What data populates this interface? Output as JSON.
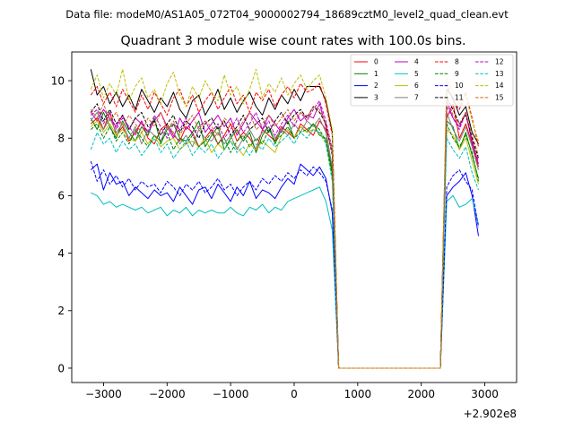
{
  "header_text": "Data file: modeM0/AS1A05_072T04_9000002794_18689cztM0_level2_quad_clean.evt",
  "chart_data": {
    "type": "line",
    "title": "Quadrant 3 module wise count rates with 100.0s bins.",
    "xlabel": "",
    "ylabel": "",
    "x_offset_label": "+2.902e8",
    "xlim": [
      -3500,
      3500
    ],
    "ylim": [
      -0.5,
      11.0
    ],
    "xticks": [
      -3000,
      -2000,
      -1000,
      0,
      1000,
      2000,
      3000
    ],
    "xtick_labels": [
      "−3000",
      "−2000",
      "−1000",
      "0",
      "1000",
      "2000",
      "3000"
    ],
    "yticks": [
      0,
      2,
      4,
      6,
      8,
      10
    ],
    "ytick_labels": [
      "0",
      "2",
      "4",
      "6",
      "8",
      "10"
    ],
    "grid": false,
    "legend_position": "top-right",
    "legend_columns": 4,
    "x_start": -3200,
    "x_step": 100,
    "gap_start_index": 38,
    "gap_end_index": 55,
    "series": [
      {
        "name": "0",
        "color": "#ff0000",
        "dash": "solid",
        "pre": [
          8.5,
          8.7,
          8.3,
          8.9,
          8.1,
          8.4,
          7.9,
          8.2,
          8.6,
          8.0,
          7.8,
          8.3,
          8.5,
          8.1,
          7.9,
          8.4,
          8.2,
          7.7,
          8.0,
          8.3,
          7.8,
          8.1,
          8.5,
          7.9,
          8.2,
          8.0,
          7.6,
          8.3,
          8.1,
          7.9,
          8.4,
          8.2,
          8.0,
          8.5,
          8.3,
          8.1,
          8.6,
          8.3
        ],
        "drop": 6.9,
        "post_rise": 8.7,
        "post": [
          9.2,
          8.0,
          8.5,
          7.8,
          7.0
        ]
      },
      {
        "name": "1",
        "color": "#008000",
        "dash": "solid",
        "pre": [
          8.7,
          8.3,
          8.9,
          8.4,
          8.0,
          8.6,
          8.2,
          7.9,
          8.4,
          8.1,
          8.7,
          7.8,
          8.3,
          8.5,
          8.0,
          7.9,
          8.2,
          8.6,
          7.7,
          8.1,
          8.4,
          7.6,
          8.0,
          8.3,
          7.9,
          8.2,
          7.5,
          8.1,
          8.4,
          7.8,
          8.3,
          8.6,
          8.0,
          8.4,
          8.2,
          8.5,
          8.1,
          8.0
        ],
        "drop": 6.8,
        "post_rise": 8.6,
        "post": [
          8.4,
          7.6,
          8.2,
          7.4,
          6.6
        ]
      },
      {
        "name": "2",
        "color": "#0000ff",
        "dash": "solid",
        "pre": [
          6.9,
          7.1,
          6.2,
          6.8,
          6.4,
          6.5,
          6.0,
          6.3,
          6.1,
          5.9,
          6.2,
          6.0,
          6.1,
          5.8,
          6.3,
          6.0,
          5.7,
          6.2,
          6.3,
          5.9,
          6.4,
          6.1,
          5.8,
          6.3,
          6.0,
          6.5,
          5.9,
          6.2,
          6.1,
          5.9,
          6.3,
          6.6,
          6.4,
          7.1,
          6.9,
          6.7,
          7.0,
          6.6
        ],
        "drop": 5.4,
        "post_rise": 6.0,
        "post": [
          6.3,
          6.5,
          6.8,
          6.0,
          4.6
        ]
      },
      {
        "name": "3",
        "color": "#000000",
        "dash": "solid",
        "pre": [
          10.4,
          9.5,
          9.8,
          9.2,
          9.6,
          9.1,
          9.5,
          9.0,
          9.7,
          9.3,
          8.9,
          9.4,
          9.1,
          9.6,
          9.0,
          8.7,
          9.3,
          9.5,
          8.8,
          9.2,
          9.7,
          9.0,
          9.4,
          8.9,
          9.3,
          9.6,
          9.1,
          8.8,
          9.4,
          9.0,
          9.5,
          9.2,
          9.7,
          9.3,
          9.8,
          9.8,
          9.8,
          9.3
        ],
        "drop": 8.2,
        "post_rise": 9.7,
        "post": [
          9.4,
          8.8,
          9.1,
          8.2,
          7.8
        ]
      },
      {
        "name": "4",
        "color": "#bf00bf",
        "dash": "solid",
        "pre": [
          8.9,
          8.6,
          9.0,
          8.7,
          8.4,
          8.8,
          8.3,
          8.7,
          8.5,
          8.2,
          8.6,
          8.9,
          8.4,
          8.0,
          8.7,
          8.3,
          8.6,
          8.9,
          8.2,
          8.5,
          8.8,
          8.4,
          8.7,
          8.1,
          8.5,
          8.9,
          8.6,
          8.3,
          8.8,
          8.5,
          8.2,
          8.7,
          9.0,
          8.6,
          8.8,
          8.7,
          9.2,
          8.4
        ],
        "drop": 7.5,
        "post_rise": 9.3,
        "post": [
          8.7,
          8.4,
          8.9,
          7.9,
          7.1
        ]
      },
      {
        "name": "5",
        "color": "#00bfbf",
        "dash": "solid",
        "pre": [
          6.1,
          6.0,
          5.7,
          5.8,
          5.6,
          5.7,
          5.6,
          5.5,
          5.6,
          5.4,
          5.5,
          5.6,
          5.3,
          5.5,
          5.4,
          5.6,
          5.3,
          5.5,
          5.4,
          5.5,
          5.4,
          5.4,
          5.6,
          5.4,
          5.3,
          5.6,
          5.5,
          5.7,
          5.4,
          5.6,
          5.5,
          5.8,
          5.9,
          6.0,
          6.1,
          6.2,
          6.3,
          5.8
        ],
        "drop": 4.8,
        "post_rise": 5.8,
        "post": [
          6.0,
          5.6,
          5.7,
          5.9,
          5.0
        ]
      },
      {
        "name": "6",
        "color": "#bfbf00",
        "dash": "solid",
        "pre": [
          8.4,
          8.6,
          8.2,
          8.5,
          8.1,
          8.3,
          8.0,
          7.9,
          8.2,
          7.8,
          8.1,
          7.7,
          7.9,
          8.0,
          7.6,
          7.8,
          7.9,
          7.7,
          8.0,
          7.5,
          7.8,
          7.6,
          7.9,
          7.7,
          7.4,
          7.8,
          7.6,
          7.9,
          7.7,
          7.5,
          8.1,
          8.3,
          8.0,
          8.4,
          8.2,
          8.3,
          8.2,
          7.9
        ],
        "drop": 6.6,
        "post_rise": 8.3,
        "post": [
          8.1,
          7.6,
          8.0,
          7.2,
          6.4
        ]
      },
      {
        "name": "7",
        "color": "#808080",
        "dash": "solid",
        "pre": [
          8.6,
          8.9,
          8.3,
          8.7,
          8.2,
          8.5,
          8.0,
          8.4,
          7.8,
          8.3,
          8.1,
          7.9,
          8.4,
          8.2,
          7.8,
          8.1,
          7.7,
          8.3,
          8.0,
          7.9,
          8.2,
          7.8,
          8.1,
          7.6,
          8.0,
          8.3,
          7.9,
          8.2,
          8.4,
          8.0,
          8.3,
          8.1,
          8.5,
          8.2,
          8.6,
          8.4,
          8.7,
          8.2
        ],
        "drop": 7.0,
        "post_rise": 8.9,
        "post": [
          8.3,
          7.9,
          8.4,
          7.7,
          6.9
        ]
      },
      {
        "name": "8",
        "color": "#ff0000",
        "dash": "dashed",
        "pre": [
          9.5,
          9.8,
          9.2,
          9.6,
          9.1,
          9.7,
          9.3,
          8.9,
          9.5,
          9.0,
          9.6,
          9.2,
          8.8,
          9.4,
          9.7,
          9.1,
          9.5,
          8.9,
          9.3,
          9.6,
          9.0,
          9.4,
          9.8,
          9.2,
          9.5,
          8.9,
          9.6,
          9.3,
          9.7,
          9.1,
          9.5,
          9.8,
          9.4,
          9.9,
          9.6,
          9.7,
          9.9,
          9.2
        ],
        "drop": 8.1,
        "post_rise": 9.9,
        "post": [
          9.3,
          9.0,
          9.6,
          8.7,
          7.7
        ]
      },
      {
        "name": "9",
        "color": "#008000",
        "dash": "dashed",
        "pre": [
          8.3,
          8.5,
          8.0,
          8.4,
          7.9,
          8.2,
          7.8,
          8.3,
          8.0,
          7.7,
          8.1,
          7.9,
          8.2,
          7.6,
          8.0,
          7.8,
          8.1,
          7.7,
          7.9,
          8.2,
          7.8,
          8.0,
          7.5,
          7.9,
          8.1,
          7.7,
          8.0,
          7.8,
          8.3,
          7.9,
          8.1,
          8.4,
          8.0,
          8.2,
          8.3,
          8.5,
          8.3,
          7.9
        ],
        "drop": 6.7,
        "post_rise": 8.5,
        "post": [
          8.0,
          7.7,
          8.1,
          7.5,
          6.5
        ]
      },
      {
        "name": "10",
        "color": "#0000ff",
        "dash": "dashed",
        "pre": [
          7.2,
          6.5,
          6.9,
          6.4,
          6.7,
          6.3,
          6.6,
          6.2,
          6.5,
          6.3,
          6.4,
          6.1,
          6.5,
          6.3,
          6.0,
          6.4,
          6.2,
          6.5,
          6.1,
          6.3,
          6.6,
          6.2,
          6.4,
          6.0,
          6.3,
          6.5,
          6.2,
          6.6,
          6.4,
          6.7,
          6.5,
          6.8,
          6.6,
          6.9,
          6.7,
          7.0,
          6.8,
          6.5
        ],
        "drop": 5.5,
        "post_rise": 6.3,
        "post": [
          6.7,
          6.9,
          6.5,
          6.2,
          4.9
        ]
      },
      {
        "name": "11",
        "color": "#000000",
        "dash": "dashed",
        "pre": [
          8.9,
          9.2,
          8.6,
          9.0,
          8.5,
          8.8,
          8.3,
          8.7,
          8.9,
          8.4,
          8.6,
          8.1,
          8.5,
          8.8,
          8.2,
          8.6,
          8.4,
          8.0,
          8.5,
          8.7,
          8.3,
          8.6,
          8.1,
          8.4,
          8.8,
          8.3,
          8.5,
          8.7,
          8.2,
          8.6,
          8.9,
          8.5,
          8.8,
          9.0,
          8.7,
          9.1,
          8.9,
          8.5
        ],
        "drop": 7.4,
        "post_rise": 9.4,
        "post": [
          9.0,
          8.5,
          8.8,
          8.0,
          7.3
        ]
      },
      {
        "name": "12",
        "color": "#bf00bf",
        "dash": "dashed",
        "pre": [
          8.8,
          9.0,
          8.5,
          8.9,
          8.3,
          8.7,
          8.4,
          8.1,
          8.6,
          8.2,
          8.8,
          8.4,
          8.0,
          8.5,
          8.3,
          8.7,
          8.1,
          8.4,
          8.6,
          8.2,
          8.5,
          8.0,
          8.3,
          8.7,
          8.2,
          8.5,
          8.9,
          8.3,
          8.6,
          8.1,
          8.5,
          8.8,
          8.4,
          8.9,
          8.6,
          9.0,
          9.3,
          8.6
        ],
        "drop": 7.6,
        "post_rise": 9.1,
        "post": [
          8.7,
          8.3,
          8.9,
          7.8,
          7.2
        ]
      },
      {
        "name": "13",
        "color": "#00bfbf",
        "dash": "dashed",
        "pre": [
          7.6,
          8.2,
          7.8,
          8.0,
          7.5,
          7.9,
          7.6,
          7.8,
          7.4,
          7.7,
          8.0,
          7.5,
          7.8,
          7.3,
          7.6,
          7.9,
          7.4,
          7.7,
          7.5,
          7.8,
          7.3,
          7.6,
          7.9,
          7.5,
          7.7,
          7.4,
          7.8,
          7.6,
          8.0,
          7.7,
          7.9,
          8.1,
          7.8,
          8.2,
          8.0,
          8.3,
          8.2,
          7.8
        ],
        "drop": 6.5,
        "post_rise": 8.0,
        "post": [
          7.6,
          7.3,
          7.7,
          6.8,
          6.2
        ]
      },
      {
        "name": "14",
        "color": "#bfbf00",
        "dash": "dashed",
        "pre": [
          9.7,
          10.2,
          9.4,
          9.9,
          9.5,
          10.4,
          9.3,
          9.8,
          10.1,
          9.4,
          9.7,
          9.2,
          9.9,
          10.3,
          9.5,
          9.1,
          9.8,
          9.4,
          10.0,
          9.6,
          9.3,
          10.2,
          9.5,
          9.8,
          9.2,
          9.7,
          10.4,
          9.4,
          9.9,
          9.6,
          10.1,
          9.5,
          9.9,
          10.2,
          9.7,
          10.0,
          10.2,
          9.4
        ],
        "drop": 8.3,
        "post_rise": 10.1,
        "post": [
          9.6,
          9.2,
          9.5,
          8.6,
          7.9
        ]
      },
      {
        "name": "15",
        "color": "#d2691e",
        "dash": "dashed",
        "pre": [
          9.0,
          8.7,
          9.2,
          8.6,
          8.9,
          8.4,
          8.8,
          8.5,
          8.2,
          8.7,
          8.4,
          8.9,
          8.3,
          8.6,
          8.1,
          8.5,
          8.8,
          8.3,
          8.6,
          8.4,
          8.1,
          8.7,
          8.5,
          8.2,
          8.6,
          8.9,
          8.3,
          8.5,
          8.8,
          8.4,
          8.7,
          9.0,
          8.6,
          8.9,
          8.7,
          9.1,
          9.0,
          8.5
        ],
        "drop": 7.5,
        "post_rise": 9.5,
        "post": [
          8.8,
          8.5,
          8.9,
          8.1,
          7.4
        ]
      }
    ]
  }
}
